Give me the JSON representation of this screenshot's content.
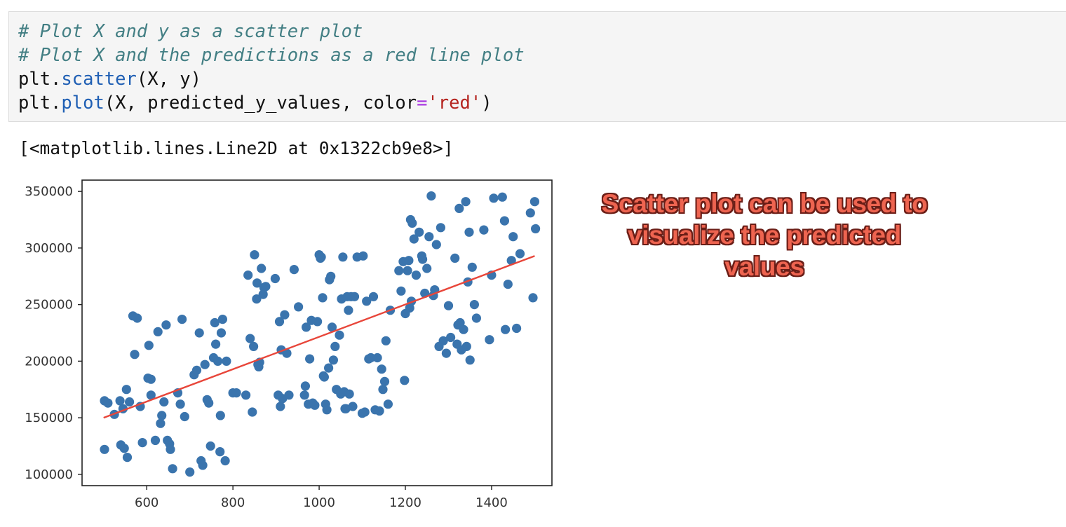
{
  "code_cell": {
    "lines": [
      [
        {
          "t": "# Plot X and y as a scatter plot",
          "c": "comment"
        }
      ],
      [
        {
          "t": "# Plot X and the predictions as a red line plot",
          "c": "comment"
        }
      ],
      [
        {
          "t": "plt.",
          "c": ""
        },
        {
          "t": "scatter",
          "c": "func"
        },
        {
          "t": "(X, y)",
          "c": ""
        }
      ],
      [
        {
          "t": "plt.",
          "c": ""
        },
        {
          "t": "plot",
          "c": "func"
        },
        {
          "t": "(X, predicted_y_values, color",
          "c": ""
        },
        {
          "t": "=",
          "c": "op"
        },
        {
          "t": "'red'",
          "c": "str"
        },
        {
          "t": ")",
          "c": ""
        }
      ]
    ]
  },
  "output": {
    "text": "[<matplotlib.lines.Line2D at 0x1322cb9e8>]"
  },
  "annotation": {
    "lines": [
      "Scatter plot can be used to",
      "visualize the predicted",
      "values"
    ]
  },
  "chart_data": {
    "type": "scatter",
    "xlim": [
      450,
      1540
    ],
    "ylim": [
      90000,
      360000
    ],
    "x_ticks": [
      600,
      800,
      1000,
      1200,
      1400
    ],
    "x_tick_labels": [
      "600",
      "800",
      "1000",
      "1200",
      "1400"
    ],
    "y_ticks": [
      100000,
      150000,
      200000,
      250000,
      300000,
      350000
    ],
    "y_tick_labels": [
      "100000",
      "150000",
      "200000",
      "250000",
      "300000",
      "350000"
    ],
    "grid": false,
    "scatter_color": "#3a74ad",
    "line_color": "#e8463a",
    "line": {
      "x": [
        500,
        1500
      ],
      "y": [
        150000,
        293000
      ]
    },
    "points": [
      [
        502,
        165000
      ],
      [
        510,
        163000
      ],
      [
        502,
        122000
      ],
      [
        525,
        153000
      ],
      [
        538,
        165000
      ],
      [
        540,
        126000
      ],
      [
        548,
        123000
      ],
      [
        555,
        115000
      ],
      [
        545,
        158000
      ],
      [
        553,
        175000
      ],
      [
        560,
        164000
      ],
      [
        568,
        240000
      ],
      [
        578,
        238000
      ],
      [
        585,
        160000
      ],
      [
        590,
        128000
      ],
      [
        572,
        206000
      ],
      [
        603,
        185000
      ],
      [
        610,
        184000
      ],
      [
        605,
        214000
      ],
      [
        610,
        170000
      ],
      [
        620,
        130000
      ],
      [
        626,
        226000
      ],
      [
        632,
        145000
      ],
      [
        635,
        152000
      ],
      [
        640,
        164000
      ],
      [
        645,
        232000
      ],
      [
        648,
        130000
      ],
      [
        653,
        127000
      ],
      [
        655,
        122000
      ],
      [
        660,
        105000
      ],
      [
        672,
        172000
      ],
      [
        678,
        162000
      ],
      [
        682,
        237000
      ],
      [
        688,
        151000
      ],
      [
        700,
        102000
      ],
      [
        710,
        188000
      ],
      [
        716,
        192000
      ],
      [
        722,
        225000
      ],
      [
        726,
        112000
      ],
      [
        730,
        108000
      ],
      [
        735,
        197000
      ],
      [
        740,
        166000
      ],
      [
        744,
        163000
      ],
      [
        748,
        125000
      ],
      [
        755,
        203000
      ],
      [
        758,
        234000
      ],
      [
        760,
        215000
      ],
      [
        765,
        200000
      ],
      [
        770,
        120000
      ],
      [
        771,
        152000
      ],
      [
        773,
        225000
      ],
      [
        776,
        237000
      ],
      [
        782,
        112000
      ],
      [
        785,
        200000
      ],
      [
        800,
        172000
      ],
      [
        808,
        172000
      ],
      [
        830,
        170000
      ],
      [
        835,
        276000
      ],
      [
        840,
        220000
      ],
      [
        845,
        155000
      ],
      [
        848,
        213000
      ],
      [
        850,
        294000
      ],
      [
        855,
        255000
      ],
      [
        856,
        269000
      ],
      [
        858,
        197000
      ],
      [
        860,
        195000
      ],
      [
        862,
        199000
      ],
      [
        866,
        282000
      ],
      [
        870,
        259000
      ],
      [
        872,
        265000
      ],
      [
        876,
        266000
      ],
      [
        898,
        273000
      ],
      [
        905,
        170000
      ],
      [
        908,
        235000
      ],
      [
        910,
        160000
      ],
      [
        912,
        210000
      ],
      [
        915,
        167000
      ],
      [
        920,
        241000
      ],
      [
        925,
        207000
      ],
      [
        930,
        170000
      ],
      [
        942,
        281000
      ],
      [
        952,
        248000
      ],
      [
        966,
        170000
      ],
      [
        968,
        178000
      ],
      [
        970,
        230000
      ],
      [
        975,
        162000
      ],
      [
        978,
        202000
      ],
      [
        982,
        236000
      ],
      [
        985,
        163000
      ],
      [
        990,
        161000
      ],
      [
        996,
        235000
      ],
      [
        1000,
        294000
      ],
      [
        1003,
        291000
      ],
      [
        1005,
        292000
      ],
      [
        1008,
        256000
      ],
      [
        1010,
        187000
      ],
      [
        1012,
        186000
      ],
      [
        1015,
        162000
      ],
      [
        1018,
        157000
      ],
      [
        1022,
        194000
      ],
      [
        1024,
        272000
      ],
      [
        1027,
        275000
      ],
      [
        1030,
        230000
      ],
      [
        1033,
        201000
      ],
      [
        1037,
        213000
      ],
      [
        1040,
        175000
      ],
      [
        1047,
        223000
      ],
      [
        1050,
        171000
      ],
      [
        1052,
        255000
      ],
      [
        1055,
        292000
      ],
      [
        1058,
        173000
      ],
      [
        1060,
        158000
      ],
      [
        1062,
        158000
      ],
      [
        1065,
        257000
      ],
      [
        1068,
        245000
      ],
      [
        1070,
        171000
      ],
      [
        1074,
        257000
      ],
      [
        1078,
        160000
      ],
      [
        1082,
        257000
      ],
      [
        1088,
        292000
      ],
      [
        1100,
        154000
      ],
      [
        1102,
        293000
      ],
      [
        1106,
        155000
      ],
      [
        1110,
        253000
      ],
      [
        1115,
        202000
      ],
      [
        1120,
        203000
      ],
      [
        1126,
        257000
      ],
      [
        1130,
        157000
      ],
      [
        1135,
        203000
      ],
      [
        1140,
        156000
      ],
      [
        1145,
        193000
      ],
      [
        1148,
        175000
      ],
      [
        1152,
        182000
      ],
      [
        1155,
        218000
      ],
      [
        1160,
        162000
      ],
      [
        1165,
        245000
      ],
      [
        1185,
        280000
      ],
      [
        1190,
        262000
      ],
      [
        1195,
        288000
      ],
      [
        1198,
        183000
      ],
      [
        1200,
        242000
      ],
      [
        1205,
        280000
      ],
      [
        1208,
        289000
      ],
      [
        1210,
        247000
      ],
      [
        1212,
        325000
      ],
      [
        1214,
        253000
      ],
      [
        1216,
        322000
      ],
      [
        1220,
        308000
      ],
      [
        1225,
        276000
      ],
      [
        1232,
        314000
      ],
      [
        1238,
        293000
      ],
      [
        1240,
        290000
      ],
      [
        1245,
        260000
      ],
      [
        1250,
        282000
      ],
      [
        1255,
        310000
      ],
      [
        1260,
        346000
      ],
      [
        1265,
        258000
      ],
      [
        1268,
        263000
      ],
      [
        1272,
        303000
      ],
      [
        1278,
        213000
      ],
      [
        1282,
        318000
      ],
      [
        1288,
        218000
      ],
      [
        1295,
        207000
      ],
      [
        1300,
        249000
      ],
      [
        1305,
        221000
      ],
      [
        1315,
        291000
      ],
      [
        1320,
        215000
      ],
      [
        1322,
        232000
      ],
      [
        1325,
        335000
      ],
      [
        1327,
        234000
      ],
      [
        1330,
        210000
      ],
      [
        1335,
        228000
      ],
      [
        1340,
        341000
      ],
      [
        1342,
        213000
      ],
      [
        1345,
        270000
      ],
      [
        1348,
        314000
      ],
      [
        1350,
        201000
      ],
      [
        1355,
        283000
      ],
      [
        1360,
        250000
      ],
      [
        1365,
        238000
      ],
      [
        1382,
        316000
      ],
      [
        1395,
        219000
      ],
      [
        1400,
        276000
      ],
      [
        1405,
        344000
      ],
      [
        1425,
        345000
      ],
      [
        1430,
        324000
      ],
      [
        1432,
        228000
      ],
      [
        1438,
        268000
      ],
      [
        1446,
        289000
      ],
      [
        1450,
        310000
      ],
      [
        1458,
        229000
      ],
      [
        1466,
        295000
      ],
      [
        1490,
        331000
      ],
      [
        1496,
        256000
      ],
      [
        1500,
        341000
      ],
      [
        1502,
        317000
      ]
    ]
  }
}
